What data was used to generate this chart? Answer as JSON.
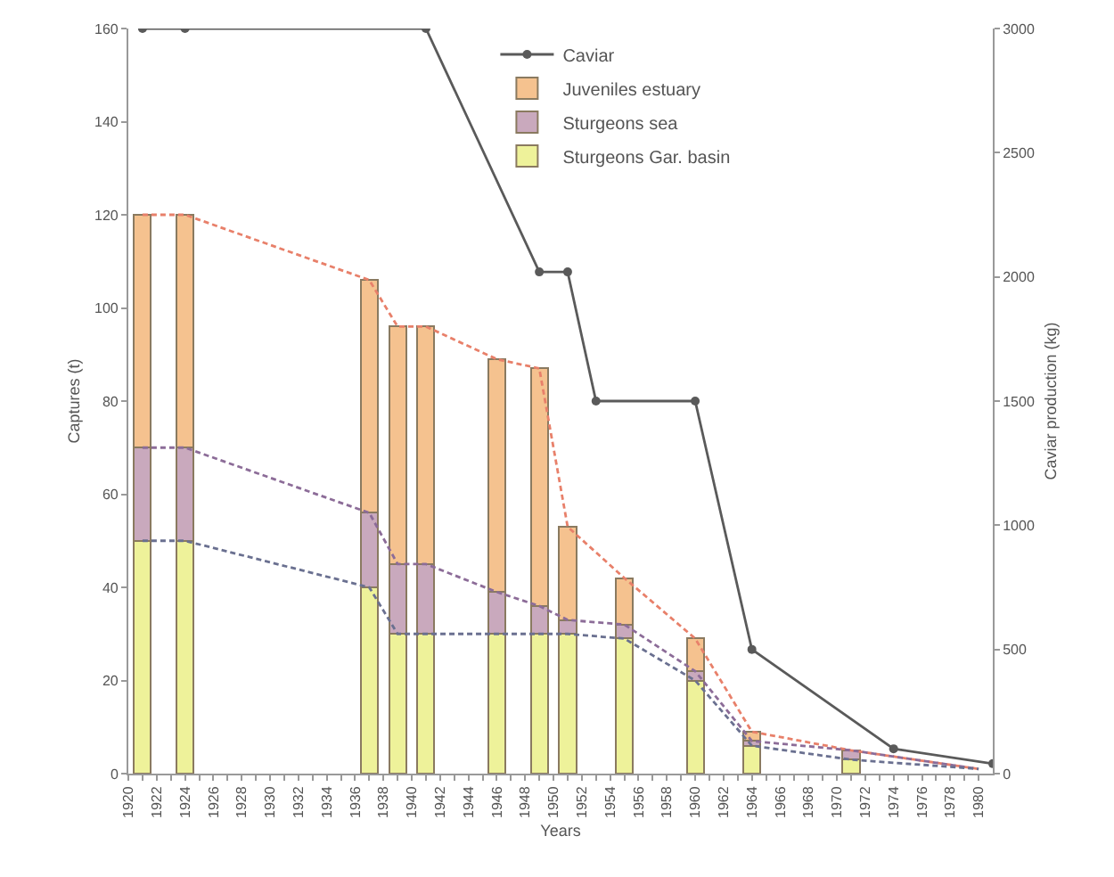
{
  "chart_data": {
    "type": "bar",
    "stacked": true,
    "xlabel": "Years",
    "ylabel": "Captures (t)",
    "y2label": "Caviar production (kg)",
    "xlim": [
      1920,
      1981
    ],
    "xticks": [
      1920,
      {
        "value": 1921,
        "label": null
      },
      1922,
      {
        "value": 1923,
        "label": null
      },
      1924,
      {
        "value": 1925,
        "label": null
      },
      1926,
      {
        "value": 1927,
        "label": null
      },
      1928,
      {
        "value": 1929,
        "label": null
      },
      1930,
      {
        "value": 1931,
        "label": null
      },
      1932,
      {
        "value": 1933,
        "label": null
      },
      1934,
      {
        "value": 1935,
        "label": null
      },
      1936,
      {
        "value": 1937,
        "label": null
      },
      1938,
      {
        "value": 1939,
        "label": null
      },
      1940,
      {
        "value": 1941,
        "label": null
      },
      1942,
      {
        "value": 1943,
        "label": null
      },
      1944,
      {
        "value": 1945,
        "label": null
      },
      1946,
      {
        "value": 1947,
        "label": null
      },
      1948,
      {
        "value": 1949,
        "label": null
      },
      1950,
      {
        "value": 1951,
        "label": null
      },
      1952,
      {
        "value": 1953,
        "label": null
      },
      1954,
      {
        "value": 1955,
        "label": null
      },
      1956,
      {
        "value": 1957,
        "label": null
      },
      1958,
      {
        "value": 1959,
        "label": null
      },
      1960,
      {
        "value": 1961,
        "label": null
      },
      1962,
      {
        "value": 1963,
        "label": null
      },
      1964,
      {
        "value": 1965,
        "label": null
      },
      1966,
      {
        "value": 1967,
        "label": null
      },
      1968,
      {
        "value": 1969,
        "label": null
      },
      1970,
      {
        "value": 1971,
        "label": null
      },
      1972,
      {
        "value": 1973,
        "label": null
      },
      1974,
      {
        "value": 1975,
        "label": null
      },
      1976,
      {
        "value": 1977,
        "label": null
      },
      1978,
      {
        "value": 1979,
        "label": null
      },
      1980
    ],
    "ylim": [
      0,
      160
    ],
    "yticks": [
      0,
      20,
      40,
      60,
      80,
      100,
      120,
      140,
      160
    ],
    "y2lim": [
      0,
      3000
    ],
    "y2ticks": [
      0,
      500,
      1000,
      1500,
      2000,
      2500,
      3000
    ],
    "grid": false,
    "legend": "top right",
    "series": [
      {
        "type": "line",
        "name": "Caviar",
        "axis": "y2",
        "color": "#5a5a5a",
        "marker": "circle",
        "line_style": "solid",
        "x": [
          1921,
          1924,
          1941,
          1949,
          1951,
          1953,
          1960,
          1964,
          1974,
          1981
        ],
        "values": [
          3000,
          3000,
          3000,
          2020,
          2020,
          1500,
          1500,
          500,
          100,
          40
        ]
      },
      {
        "name": "Sturgeons Gar. basin",
        "color": "#eef29a",
        "x": [
          1921,
          1924,
          1937,
          1939,
          1941,
          1946,
          1949,
          1951,
          1955,
          1960,
          1964,
          1971
        ],
        "values": [
          50,
          50,
          40,
          30,
          30,
          30,
          30,
          30,
          29,
          20,
          6,
          3
        ]
      },
      {
        "name": "Sturgeons sea",
        "color": "#c9a9bd",
        "x": [
          1921,
          1924,
          1937,
          1939,
          1941,
          1946,
          1949,
          1951,
          1955,
          1960,
          1964,
          1971
        ],
        "values": [
          20,
          20,
          16,
          15,
          15,
          9,
          6,
          3,
          3,
          2,
          1,
          2
        ]
      },
      {
        "name": "Juveniles estuary",
        "color": "#f5c28f",
        "x": [
          1921,
          1924,
          1937,
          1939,
          1941,
          1946,
          1949,
          1951,
          1955,
          1960,
          1964
        ],
        "values": [
          50,
          50,
          50,
          51,
          51,
          50,
          51,
          20,
          10,
          7,
          2
        ]
      },
      {
        "type": "line",
        "color": "#e8806a",
        "marker": "none",
        "line_style": "dashed",
        "x": [
          1921,
          1924,
          1937,
          1939,
          1941,
          1946,
          1949,
          1951,
          1955,
          1960,
          1964,
          1971,
          1980
        ],
        "values": [
          120,
          120,
          106,
          96,
          96,
          89,
          87,
          53,
          42,
          29,
          9,
          5,
          1
        ]
      },
      {
        "type": "line",
        "color": "#8c6c98",
        "marker": "none",
        "line_style": "dashed",
        "x": [
          1921,
          1924,
          1937,
          1939,
          1941,
          1946,
          1949,
          1951,
          1955,
          1960,
          1964,
          1971,
          1980
        ],
        "values": [
          70,
          70,
          56,
          45,
          45,
          39,
          36,
          33,
          32,
          22,
          7,
          5,
          1
        ]
      },
      {
        "type": "line",
        "color": "#6a7090",
        "marker": "none",
        "line_style": "dashed",
        "x": [
          1921,
          1924,
          1937,
          1939,
          1941,
          1946,
          1949,
          1951,
          1955,
          1960,
          1964,
          1971,
          1980
        ],
        "values": [
          50,
          50,
          40,
          30,
          30,
          30,
          30,
          30,
          29,
          20,
          6,
          3,
          1
        ]
      }
    ]
  }
}
